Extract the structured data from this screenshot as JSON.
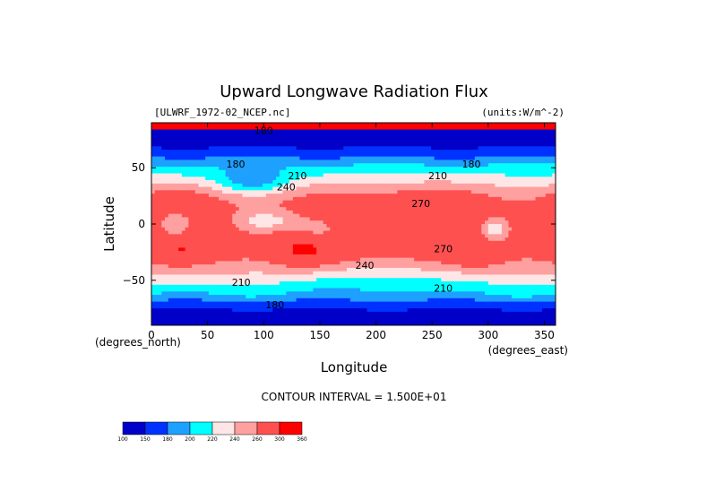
{
  "chart_data": {
    "type": "heatmap",
    "title": "Upward Longwave Radiation Flux",
    "file_label": "[ULWRF_1972-02_NCEP.nc]",
    "units_label": "(units:W/m^-2)",
    "xlabel": "Longitude",
    "ylabel": "Latitude",
    "x_units_label": "(degrees_east)",
    "y_units_label": "(degrees_north)",
    "xlim": [
      0,
      360
    ],
    "ylim": [
      -90,
      90
    ],
    "x_ticks": [
      0,
      50,
      100,
      150,
      200,
      250,
      300,
      350
    ],
    "y_ticks": [
      -50,
      0,
      50
    ],
    "contour_interval_label": "CONTOUR INTERVAL = 1.500E+01",
    "colorbar": {
      "boundaries": [
        "100",
        "150",
        "180",
        "200",
        "220",
        "240",
        "260",
        "300",
        "360"
      ],
      "colors": [
        "#0000c8",
        "#0032ff",
        "#1ea0ff",
        "#00ffff",
        "#ffe6e6",
        "#ffa0a0",
        "#ff5050",
        "#ff0000"
      ]
    },
    "contour_labels": [
      {
        "text": "180",
        "lon": 100,
        "lat": 80
      },
      {
        "text": "180",
        "lon": 75,
        "lat": 50
      },
      {
        "text": "210",
        "lon": 130,
        "lat": 40
      },
      {
        "text": "240",
        "lon": 120,
        "lat": 30
      },
      {
        "text": "210",
        "lon": 255,
        "lat": 40
      },
      {
        "text": "180",
        "lon": 285,
        "lat": 50
      },
      {
        "text": "270",
        "lon": 240,
        "lat": 15
      },
      {
        "text": "270",
        "lon": 260,
        "lat": -25
      },
      {
        "text": "240",
        "lon": 190,
        "lat": -40
      },
      {
        "text": "210",
        "lon": 80,
        "lat": -55
      },
      {
        "text": "210",
        "lon": 260,
        "lat": -60
      },
      {
        "text": "180",
        "lon": 110,
        "lat": -75
      }
    ]
  }
}
